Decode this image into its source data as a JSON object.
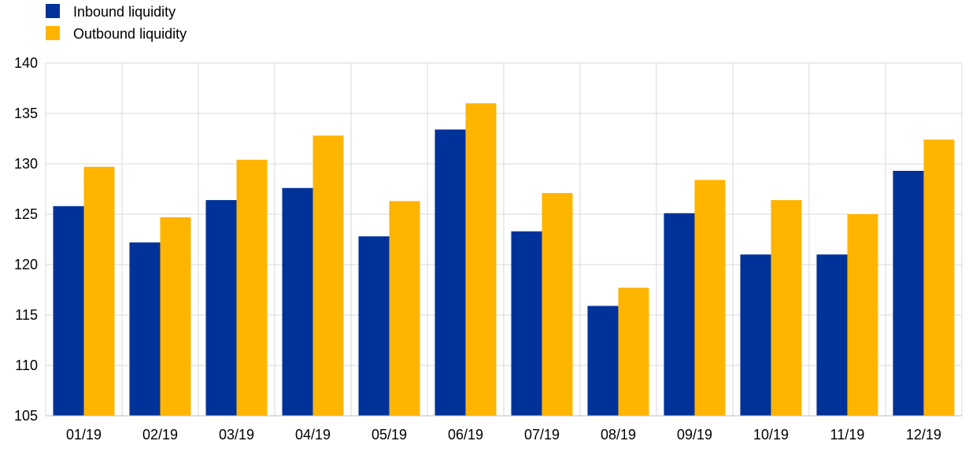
{
  "chart_data": {
    "type": "bar",
    "title": "",
    "xlabel": "",
    "ylabel": "",
    "categories": [
      "01/19",
      "02/19",
      "03/19",
      "04/19",
      "05/19",
      "06/19",
      "07/19",
      "08/19",
      "09/19",
      "10/19",
      "11/19",
      "12/19"
    ],
    "series": [
      {
        "name": "Inbound liquidity",
        "color": "#003299",
        "values": [
          125.8,
          122.2,
          126.4,
          127.6,
          122.8,
          133.4,
          123.3,
          115.9,
          125.1,
          121.0,
          121.0,
          129.3
        ]
      },
      {
        "name": "Outbound liquidity",
        "color": "#FFB400",
        "values": [
          129.7,
          124.7,
          130.4,
          132.8,
          126.3,
          136.0,
          127.1,
          117.7,
          128.4,
          126.4,
          125.0,
          132.4
        ]
      }
    ],
    "ylim": [
      105,
      140
    ],
    "yticks": [
      105,
      110,
      115,
      120,
      125,
      130,
      135,
      140
    ],
    "grid": true,
    "legend_position": "top-left"
  }
}
